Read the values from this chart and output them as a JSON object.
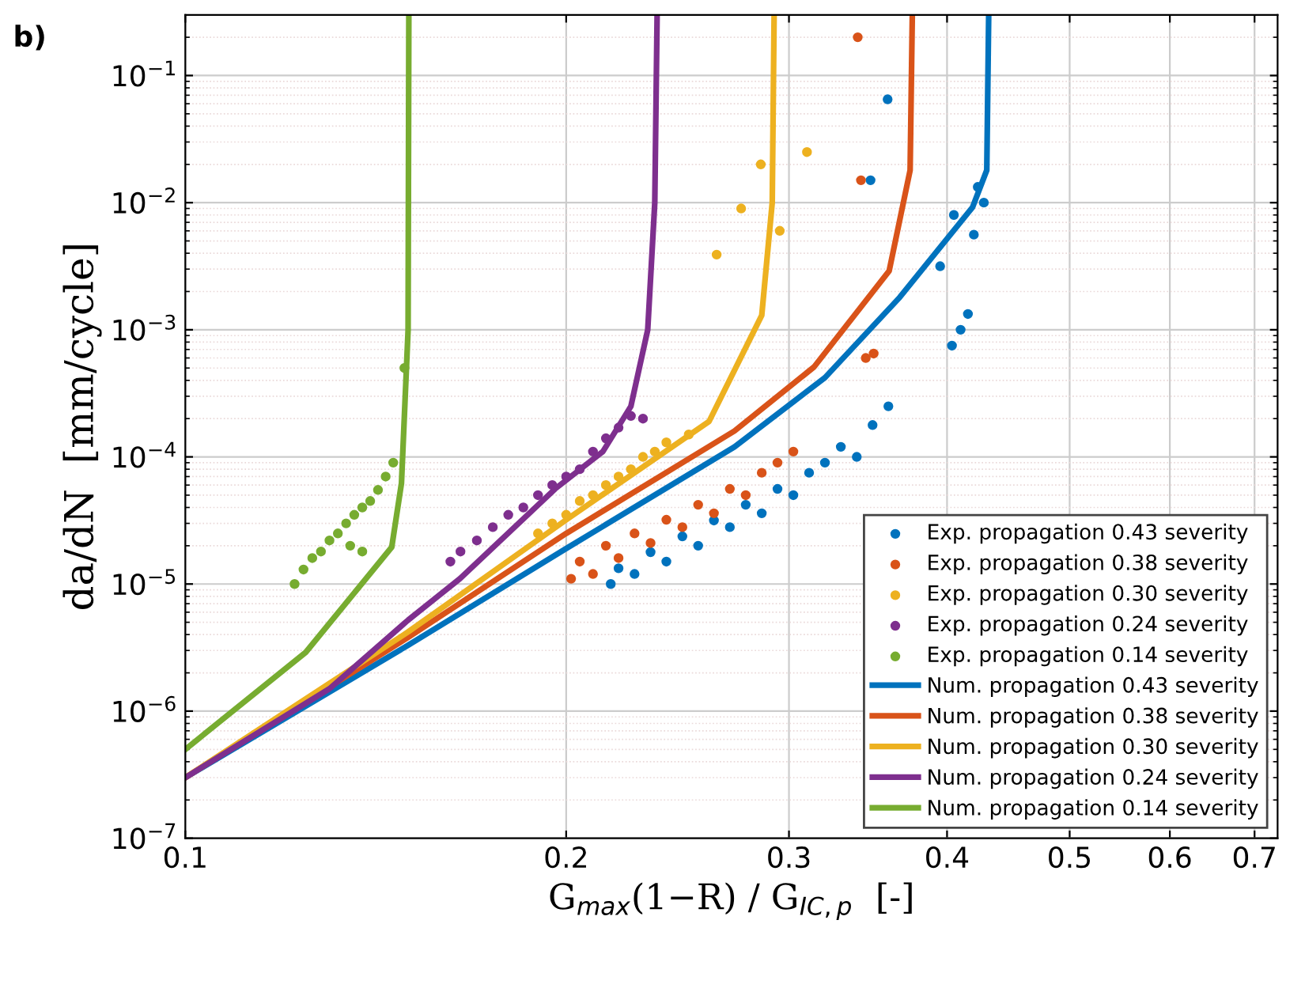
{
  "chart_data": {
    "type": "line",
    "log": "xy",
    "grid": true,
    "legend": "bottom right",
    "xlabel": "G$_{max}$(1−R) / G$_{IC,p}$  [-]",
    "ylabel": "da/dN  [mm/cycle]",
    "annotations": [
      "b)"
    ],
    "xlim": [
      0.1,
      0.73
    ],
    "ylim": [
      1e-07,
      0.3
    ],
    "xticks": [
      0.1,
      0.2,
      0.3,
      0.4,
      0.5,
      0.6,
      0.7
    ],
    "yticks": [
      {
        "value": 1e-07,
        "label": "10$^{−7}$"
      },
      {
        "value": 1e-06,
        "label": "10$^{−6}$"
      },
      {
        "value": 1e-05,
        "label": "10$^{−5}$"
      },
      {
        "value": 0.0001,
        "label": "10$^{−4}$"
      },
      {
        "value": 0.001,
        "label": "10$^{−3}$"
      },
      {
        "value": 0.01,
        "label": "10$^{−2}$"
      },
      {
        "value": 0.1,
        "label": "10$^{−1}$"
      }
    ],
    "series": [
      {
        "name": "Exp. propagation 0.43 severity",
        "type": "scatter",
        "marker": "circle",
        "color": "#0072bd",
        "x": [
          0.2169,
          0.22,
          0.2265,
          0.2332,
          0.24,
          0.2471,
          0.2543,
          0.2617,
          0.2694,
          0.2773,
          0.2855,
          0.2938,
          0.3024,
          0.3112,
          0.3203,
          0.3297,
          0.3394,
          0.3493,
          0.3595,
          0.4036,
          0.41,
          0.4155,
          0.395,
          0.42,
          0.4277,
          0.405,
          0.423,
          0.348,
          0.359
        ],
        "values": [
          1e-05,
          1.33e-05,
          1.2e-05,
          1.78e-05,
          1.5e-05,
          2.37e-05,
          2e-05,
          3.16e-05,
          2.8e-05,
          4.2e-05,
          3.6e-05,
          5.6e-05,
          5e-05,
          7.5e-05,
          9e-05,
          0.00012,
          0.0001,
          0.000178,
          0.00025,
          0.00075,
          0.001,
          0.00133,
          0.00316,
          0.0056,
          0.01,
          0.008,
          0.0133,
          0.015,
          0.065
        ]
      },
      {
        "name": "Exp. propagation 0.38 severity",
        "type": "scatter",
        "marker": "circle",
        "color": "#d95319",
        "x": [
          0.2018,
          0.205,
          0.21,
          0.215,
          0.22,
          0.2265,
          0.2332,
          0.24,
          0.2471,
          0.2543,
          0.2617,
          0.2694,
          0.2773,
          0.2855,
          0.2938,
          0.3024,
          0.345,
          0.35,
          0.342,
          0.34
        ],
        "values": [
          1.1e-05,
          1.5e-05,
          1.2e-05,
          2e-05,
          1.6e-05,
          2.5e-05,
          2.1e-05,
          3.2e-05,
          2.8e-05,
          4.2e-05,
          3.6e-05,
          5.6e-05,
          5e-05,
          7.5e-05,
          9e-05,
          0.00011,
          0.0006,
          0.00065,
          0.015,
          0.2
        ]
      },
      {
        "name": "Exp. propagation 0.30 severity",
        "type": "scatter",
        "marker": "circle",
        "color": "#edb120",
        "x": [
          0.19,
          0.195,
          0.2,
          0.205,
          0.21,
          0.215,
          0.22,
          0.225,
          0.23,
          0.235,
          0.24,
          0.25,
          0.263,
          0.275,
          0.285,
          0.31,
          0.295
        ],
        "values": [
          2.5e-05,
          3e-05,
          3.5e-05,
          4.5e-05,
          5e-05,
          6e-05,
          7e-05,
          8e-05,
          0.0001,
          0.00011,
          0.00013,
          0.00015,
          0.0039,
          0.009,
          0.02,
          0.025,
          0.006
        ]
      },
      {
        "name": "Exp. propagation 0.24 severity",
        "type": "scatter",
        "marker": "circle",
        "color": "#7e2f8e",
        "x": [
          0.162,
          0.165,
          0.17,
          0.175,
          0.18,
          0.185,
          0.19,
          0.195,
          0.2,
          0.205,
          0.21,
          0.215,
          0.22,
          0.225,
          0.23
        ],
        "values": [
          1.5e-05,
          1.8e-05,
          2.2e-05,
          2.8e-05,
          3.5e-05,
          4e-05,
          5e-05,
          6e-05,
          7e-05,
          8e-05,
          0.00011,
          0.00014,
          0.00017,
          0.00021,
          0.0002
        ]
      },
      {
        "name": "Exp. propagation 0.14 severity",
        "type": "scatter",
        "marker": "circle",
        "color": "#77ac30",
        "x": [
          0.122,
          0.124,
          0.126,
          0.128,
          0.13,
          0.132,
          0.134,
          0.136,
          0.138,
          0.14,
          0.142,
          0.144,
          0.146,
          0.149,
          0.138,
          0.135
        ],
        "values": [
          1e-05,
          1.3e-05,
          1.6e-05,
          1.8e-05,
          2.2e-05,
          2.5e-05,
          3e-05,
          3.5e-05,
          4e-05,
          4.5e-05,
          5.5e-05,
          7e-05,
          9e-05,
          0.0005,
          1.8e-05,
          2e-05
        ]
      },
      {
        "name": "Num. propagation 0.43 severity",
        "color": "#0072bd",
        "x": [
          0.1,
          0.15,
          0.2,
          0.2717,
          0.3203,
          0.367,
          0.419,
          0.43,
          0.4315
        ],
        "values": [
          3e-07,
          3.3e-06,
          1.9e-05,
          0.00012,
          0.00042,
          0.0018,
          0.0092,
          0.018,
          0.3
        ]
      },
      {
        "name": "Num. propagation 0.38 severity",
        "color": "#d95319",
        "x": [
          0.1,
          0.15,
          0.2,
          0.2717,
          0.314,
          0.36,
          0.374,
          0.3755
        ],
        "values": [
          3e-07,
          3.8e-06,
          2.5e-05,
          0.00016,
          0.00051,
          0.0029,
          0.018,
          0.3
        ]
      },
      {
        "name": "Num. propagation 0.30 severity",
        "color": "#edb120",
        "x": [
          0.1,
          0.15,
          0.2,
          0.2594,
          0.2855,
          0.291,
          0.292
        ],
        "values": [
          3e-07,
          4.2e-06,
          3.2e-05,
          0.00019,
          0.0013,
          0.01,
          0.3
        ]
      },
      {
        "name": "Num. propagation 0.24 severity",
        "color": "#7e2f8e",
        "x": [
          0.1,
          0.13,
          0.15,
          0.1648,
          0.196,
          0.2138,
          0.225,
          0.232,
          0.235,
          0.236
        ],
        "values": [
          3e-07,
          1.5e-06,
          5.2e-06,
          1.1e-05,
          5.6e-05,
          0.00011,
          0.00025,
          0.001,
          0.01,
          0.3
        ]
      },
      {
        "name": "Num. propagation 0.14 severity",
        "color": "#77ac30",
        "x": [
          0.1,
          0.1245,
          0.1456,
          0.1482,
          0.15,
          0.1502
        ],
        "values": [
          5e-07,
          2.9e-06,
          1.95e-05,
          6.2e-05,
          0.001,
          0.3
        ]
      }
    ]
  }
}
